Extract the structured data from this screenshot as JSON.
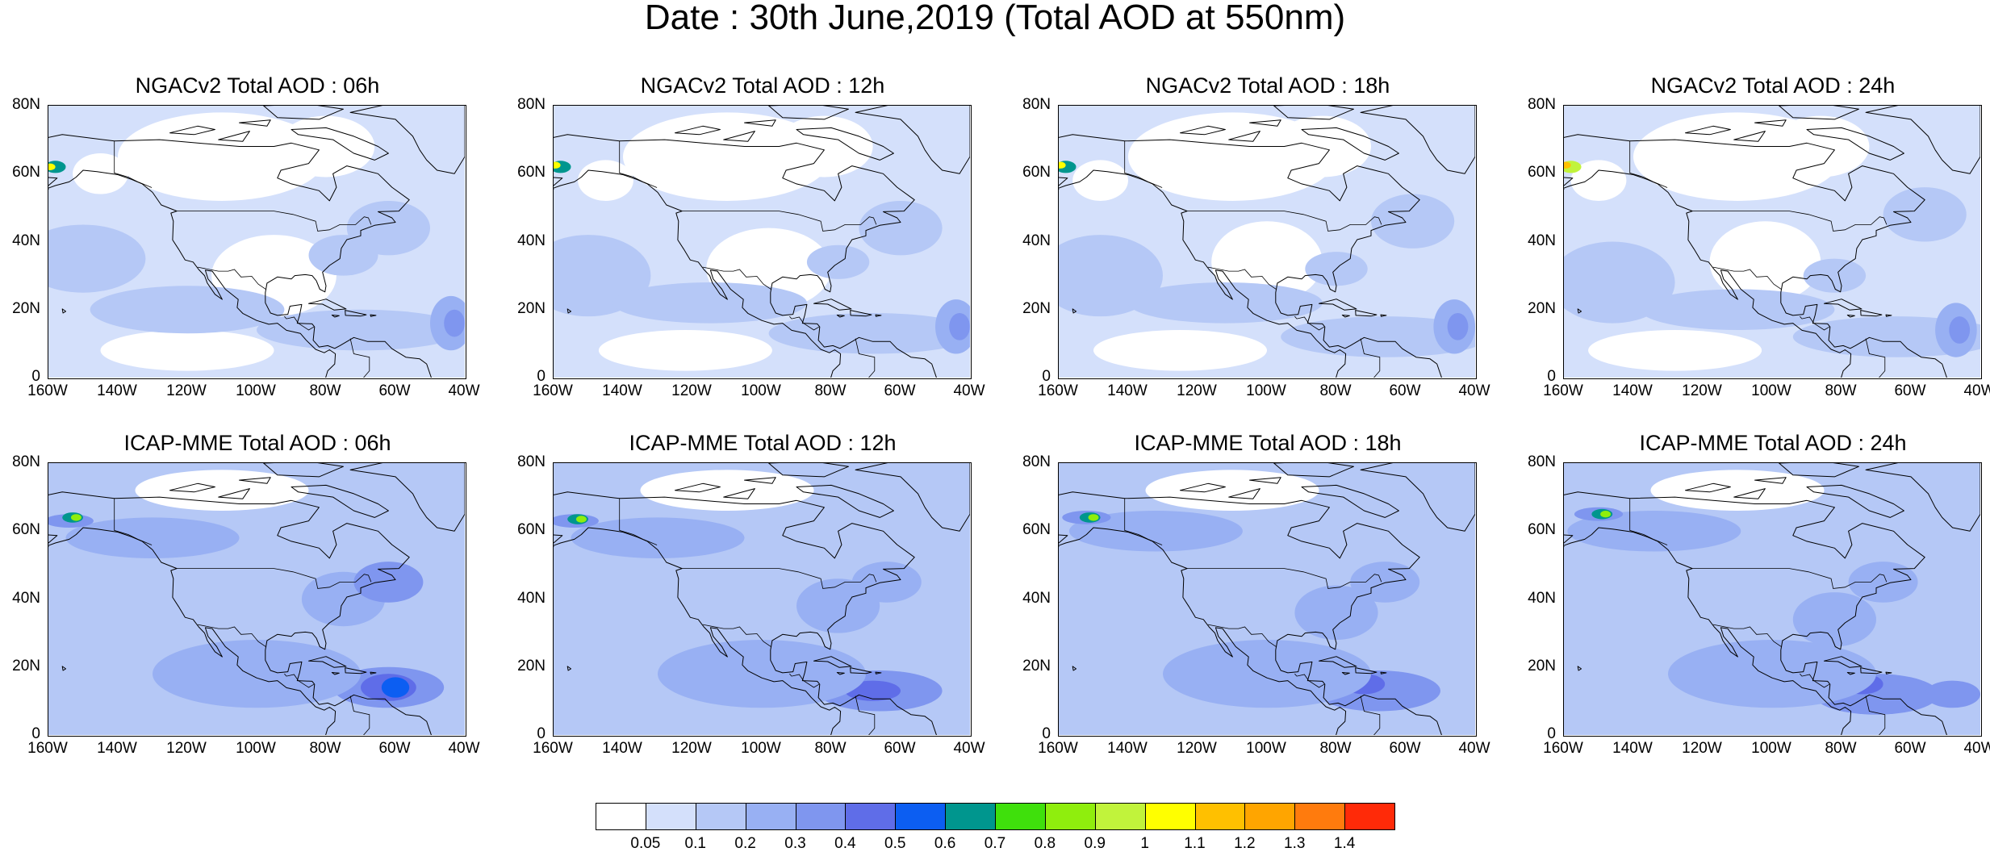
{
  "title": "Date : 30th June,2019 (Total AOD at 550nm)",
  "panels": [
    {
      "title": "NGACv2 Total AOD : 06h",
      "model": "NGACv2",
      "hour": "06h"
    },
    {
      "title": "NGACv2 Total AOD : 12h",
      "model": "NGACv2",
      "hour": "12h"
    },
    {
      "title": "NGACv2 Total AOD : 18h",
      "model": "NGACv2",
      "hour": "18h"
    },
    {
      "title": "NGACv2 Total AOD : 24h",
      "model": "NGACv2",
      "hour": "24h"
    },
    {
      "title": "ICAP-MME Total AOD : 06h",
      "model": "ICAP-MME",
      "hour": "06h"
    },
    {
      "title": "ICAP-MME Total AOD : 12h",
      "model": "ICAP-MME",
      "hour": "12h"
    },
    {
      "title": "ICAP-MME Total AOD : 18h",
      "model": "ICAP-MME",
      "hour": "18h"
    },
    {
      "title": "ICAP-MME Total AOD : 24h",
      "model": "ICAP-MME",
      "hour": "24h"
    }
  ],
  "axes": {
    "lat_labels": [
      "80N",
      "60N",
      "40N",
      "20N",
      "0"
    ],
    "lon_labels": [
      "160W",
      "140W",
      "120W",
      "100W",
      "80W",
      "60W",
      "40W"
    ]
  },
  "colorbar": {
    "labels": [
      "0.05",
      "0.1",
      "0.2",
      "0.3",
      "0.4",
      "0.5",
      "0.6",
      "0.7",
      "0.8",
      "0.9",
      "1",
      "1.1",
      "1.2",
      "1.3",
      "1.4"
    ],
    "colors": [
      "#ffffff",
      "#d4e0fb",
      "#b5c8f6",
      "#98b0f3",
      "#7f96ef",
      "#5f6de8",
      "#0c5ef2",
      "#00968e",
      "#3fe00c",
      "#8fee0d",
      "#c1f33b",
      "#ffff00",
      "#ffc000",
      "#ffa500",
      "#ff7b0d",
      "#ff2a08"
    ]
  }
}
